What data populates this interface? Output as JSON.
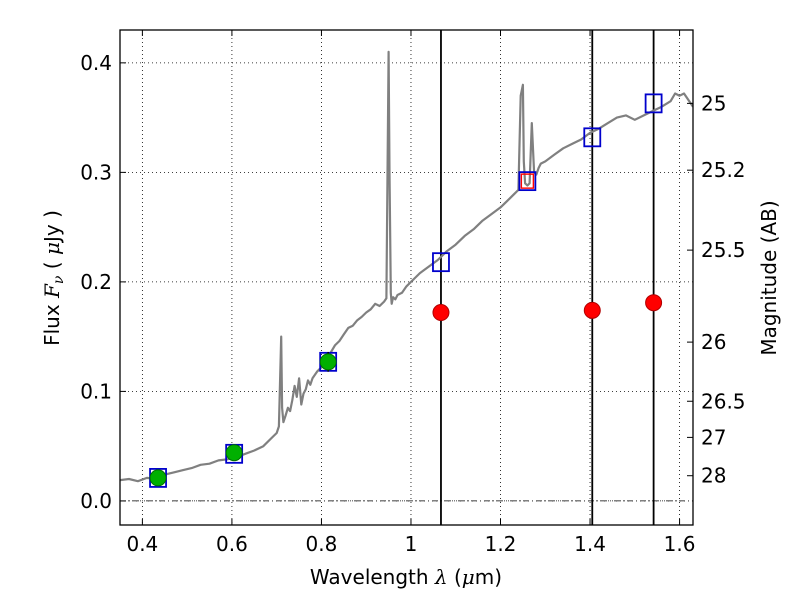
{
  "chart_data": {
    "type": "line",
    "xlabel": {
      "prefix": "Wavelength  ",
      "symbol": "λ",
      "suffix": " (",
      "unit_prefix": "μ",
      "unit": "m)"
    },
    "ylabel": {
      "prefix": "Flux  ",
      "symbol": "F",
      "subscript": "ν",
      "suffix": "  ( ",
      "unit_prefix": "μ",
      "unit": "Jy )"
    },
    "y2label": "Magnitude (AB)",
    "xlim": [
      0.35,
      1.63
    ],
    "ylim": [
      -0.022,
      0.43
    ],
    "grid": true,
    "x_ticks": [
      0.4,
      0.6,
      0.8,
      1.0,
      1.2,
      1.4,
      1.6
    ],
    "x_tick_labels": [
      "0.4",
      "0.6",
      "0.8",
      "1",
      "1.2",
      "1.4",
      "1.6"
    ],
    "y_ticks": [
      0.0,
      0.1,
      0.2,
      0.3,
      0.4
    ],
    "y_tick_labels": [
      "0.0",
      "0.1",
      "0.2",
      "0.3",
      "0.4"
    ],
    "mag_ticks": [
      {
        "label": "25",
        "flux": 0.363
      },
      {
        "label": "25.2",
        "flux": 0.302
      },
      {
        "label": "25.5",
        "flux": 0.229
      },
      {
        "label": "26",
        "flux": 0.145
      },
      {
        "label": "26.5",
        "flux": 0.091
      },
      {
        "label": "27",
        "flux": 0.058
      },
      {
        "label": "28",
        "flux": 0.023
      }
    ],
    "vertical_lines": [
      1.067,
      1.405,
      1.542
    ],
    "spectrum": {
      "color": "#808080",
      "x": [
        0.35,
        0.37,
        0.39,
        0.41,
        0.43,
        0.45,
        0.47,
        0.49,
        0.51,
        0.53,
        0.55,
        0.57,
        0.59,
        0.61,
        0.63,
        0.65,
        0.67,
        0.69,
        0.7,
        0.705,
        0.71,
        0.712,
        0.715,
        0.72,
        0.725,
        0.73,
        0.735,
        0.74,
        0.745,
        0.75,
        0.755,
        0.76,
        0.765,
        0.77,
        0.775,
        0.78,
        0.79,
        0.8,
        0.81,
        0.82,
        0.83,
        0.84,
        0.85,
        0.86,
        0.87,
        0.88,
        0.89,
        0.9,
        0.91,
        0.92,
        0.93,
        0.94,
        0.945,
        0.95,
        0.952,
        0.955,
        0.957,
        0.96,
        0.965,
        0.97,
        0.98,
        0.99,
        1.0,
        1.02,
        1.04,
        1.06,
        1.08,
        1.1,
        1.12,
        1.14,
        1.16,
        1.18,
        1.2,
        1.22,
        1.23,
        1.24,
        1.245,
        1.25,
        1.252,
        1.255,
        1.26,
        1.265,
        1.27,
        1.275,
        1.28,
        1.285,
        1.29,
        1.3,
        1.32,
        1.34,
        1.36,
        1.38,
        1.4,
        1.42,
        1.44,
        1.46,
        1.48,
        1.5,
        1.52,
        1.54,
        1.56,
        1.58,
        1.59,
        1.6,
        1.61,
        1.62,
        1.63
      ],
      "y": [
        0.019,
        0.02,
        0.018,
        0.021,
        0.02,
        0.024,
        0.026,
        0.028,
        0.03,
        0.033,
        0.034,
        0.037,
        0.038,
        0.04,
        0.043,
        0.046,
        0.05,
        0.058,
        0.062,
        0.068,
        0.15,
        0.085,
        0.072,
        0.078,
        0.085,
        0.082,
        0.092,
        0.105,
        0.095,
        0.112,
        0.088,
        0.098,
        0.102,
        0.11,
        0.106,
        0.112,
        0.118,
        0.122,
        0.128,
        0.135,
        0.142,
        0.146,
        0.152,
        0.158,
        0.16,
        0.165,
        0.168,
        0.172,
        0.175,
        0.18,
        0.178,
        0.182,
        0.185,
        0.41,
        0.3,
        0.19,
        0.18,
        0.186,
        0.184,
        0.188,
        0.19,
        0.196,
        0.2,
        0.208,
        0.214,
        0.22,
        0.228,
        0.234,
        0.242,
        0.248,
        0.256,
        0.262,
        0.268,
        0.276,
        0.28,
        0.284,
        0.37,
        0.38,
        0.31,
        0.29,
        0.288,
        0.29,
        0.345,
        0.3,
        0.298,
        0.304,
        0.308,
        0.31,
        0.316,
        0.322,
        0.326,
        0.33,
        0.336,
        0.34,
        0.345,
        0.35,
        0.352,
        0.348,
        0.352,
        0.356,
        0.36,
        0.365,
        0.372,
        0.37,
        0.372,
        0.366,
        0.36
      ]
    },
    "blue_squares": {
      "color": "#0000cc",
      "x": [
        0.435,
        0.605,
        0.815,
        1.067,
        1.26,
        1.405,
        1.542
      ],
      "y": [
        0.021,
        0.043,
        0.127,
        0.218,
        0.292,
        0.332,
        0.363
      ]
    },
    "red_square": {
      "color": "#ff0000",
      "x": 1.26,
      "y": 0.292
    },
    "green_points": {
      "color": "#00b000",
      "x": [
        0.435,
        0.605,
        0.815
      ],
      "y": [
        0.021,
        0.044,
        0.127
      ],
      "err": [
        0.007,
        0.007,
        0.009
      ]
    },
    "red_points": {
      "color": "#ff0000",
      "x": [
        1.067,
        1.405,
        1.542
      ],
      "y": [
        0.172,
        0.174,
        0.181
      ]
    }
  }
}
